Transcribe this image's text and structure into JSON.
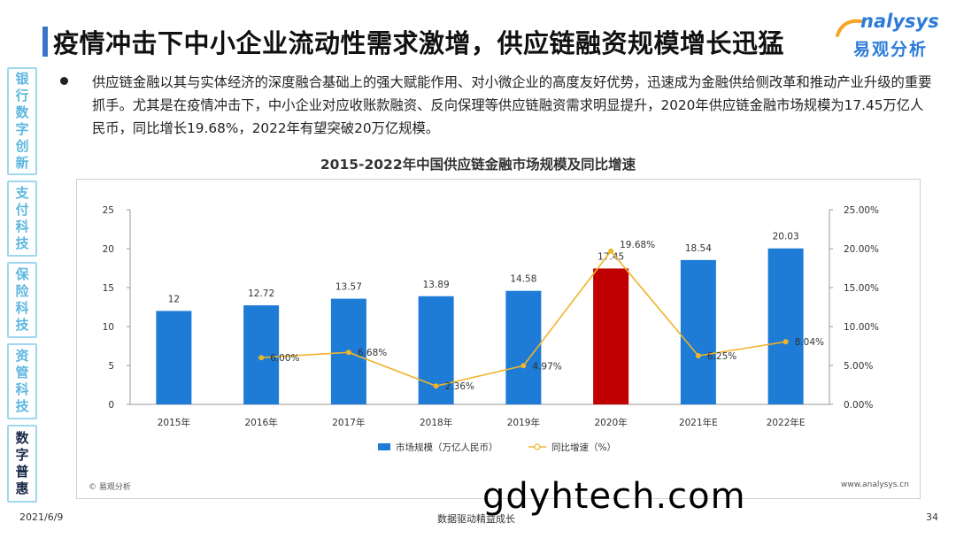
{
  "page": {
    "title": "疫情冲击下中小企业流动性需求激增，供应链融资规模增长迅猛",
    "logo": {
      "en": "nalysys",
      "cn": "易观分析"
    },
    "sidebar": [
      {
        "label": "银\n行\n数\n字\n创\n新",
        "active": false
      },
      {
        "label": "支\n付\n科\n技",
        "active": false
      },
      {
        "label": "保\n险\n科\n技",
        "active": false
      },
      {
        "label": "资\n管\n科\n技",
        "active": false
      },
      {
        "label": "数\n字\n普\n惠",
        "active": true
      }
    ],
    "paragraph": "供应链金融以其与实体经济的深度融合基础上的强大赋能作用、对小微企业的高度友好优势，迅速成为金融供给侧改革和推动产业升级的重要抓手。尤其是在疫情冲击下，中小企业对应收账款融资、反向保理等供应链融资需求明显提升，2020年供应链金融市场规模为17.45万亿人民币，同比增长19.68%，2022年有望突破20万亿规模。",
    "copyright": "© 易观分析",
    "site": "www.analysys.cn",
    "footer": {
      "date": "2021/6/9",
      "center": "数据驱动精益成长",
      "page": "34"
    },
    "watermark_text": "gdyhtech.com"
  },
  "chart_data": {
    "type": "bar",
    "title": "2015-2022年中国供应链金融市场规模及同比增速",
    "categories": [
      "2015年",
      "2016年",
      "2017年",
      "2018年",
      "2019年",
      "2020年",
      "2021年E",
      "2022年E"
    ],
    "series": [
      {
        "name": "市场规模（万亿人民币）",
        "type": "bar",
        "axis": "left",
        "values": [
          12,
          12.72,
          13.57,
          13.89,
          14.58,
          17.45,
          18.54,
          20.03
        ],
        "value_labels": [
          "12",
          "12.72",
          "13.57",
          "13.89",
          "14.58",
          "17.45",
          "18.54",
          "20.03"
        ],
        "color": "#1e7bd6",
        "highlight": {
          "index": 5,
          "color": "#c00000"
        }
      },
      {
        "name": "同比增速（%）",
        "type": "line",
        "axis": "right",
        "values": [
          null,
          6.0,
          6.68,
          2.36,
          4.97,
          19.68,
          6.25,
          8.04
        ],
        "value_labels": [
          "",
          "6.00%",
          "6.68%",
          "2.36%",
          "4.97%",
          "19.68%",
          "6.25%",
          "8.04%"
        ],
        "color": "#f0b429"
      }
    ],
    "y_left": {
      "min": 0,
      "max": 25,
      "ticks": [
        0,
        5,
        10,
        15,
        20,
        25
      ],
      "tick_labels": [
        "0",
        "5",
        "10",
        "15",
        "20",
        "25"
      ]
    },
    "y_right": {
      "min": 0,
      "max": 25,
      "ticks": [
        0,
        5,
        10,
        15,
        20,
        25
      ],
      "tick_labels": [
        "0.00%",
        "5.00%",
        "10.00%",
        "15.00%",
        "20.00%",
        "25.00%"
      ]
    },
    "grid": false,
    "legend_position": "bottom"
  }
}
